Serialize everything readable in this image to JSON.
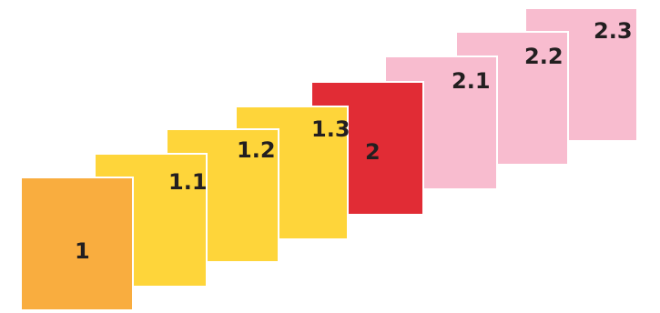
{
  "diagram": {
    "cards": [
      {
        "label": "2.3",
        "color": "#f8bccf",
        "level": "sub"
      },
      {
        "label": "2.2",
        "color": "#f8bccf",
        "level": "sub"
      },
      {
        "label": "2.1",
        "color": "#f8bccf",
        "level": "sub"
      },
      {
        "label": "2",
        "color": "#e12c35",
        "level": "main"
      },
      {
        "label": "1.3",
        "color": "#fed53a",
        "level": "sub"
      },
      {
        "label": "1.2",
        "color": "#fed53a",
        "level": "sub"
      },
      {
        "label": "1.1",
        "color": "#fed53a",
        "level": "sub"
      },
      {
        "label": "1",
        "color": "#f9ad3f",
        "level": "main"
      }
    ]
  }
}
